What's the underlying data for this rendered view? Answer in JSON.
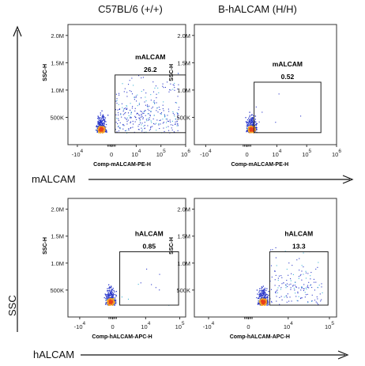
{
  "columns": [
    "C57BL/6 (+/+)",
    "B-hALCAM (H/H)"
  ],
  "row_labels": [
    "mALCAM",
    "hALCAM"
  ],
  "side_label": "SSC",
  "chart_data": [
    {
      "type": "scatter",
      "row": 0,
      "col": 0,
      "xlabel": "Comp-mALCAM-PE-H",
      "ylabel": "SSC-H",
      "yticks": [
        "500K",
        "1.0M",
        "1.5M",
        "2.0M"
      ],
      "y_tick_values": [
        500000,
        1000000,
        1500000,
        2000000
      ],
      "ylim": [
        0,
        2200000
      ],
      "xticks": [
        "-10",
        "0",
        "10",
        "10",
        "10"
      ],
      "xtick_sup": [
        "4",
        "",
        "4",
        "5",
        "6"
      ],
      "gate_label": "mALCAM",
      "gate_percent": "26.2"
    },
    {
      "type": "scatter",
      "row": 0,
      "col": 1,
      "xlabel": "Comp-mALCAM-PE-H",
      "ylabel": "SSC-H",
      "yticks": [
        "500K",
        "1.0M",
        "1.5M",
        "2.0M"
      ],
      "y_tick_values": [
        500000,
        1000000,
        1500000,
        2000000
      ],
      "ylim": [
        0,
        2200000
      ],
      "xticks": [
        "-10",
        "0",
        "10",
        "10",
        "10"
      ],
      "xtick_sup": [
        "4",
        "",
        "4",
        "5",
        "6"
      ],
      "gate_label": "mALCAM",
      "gate_percent": "0.52"
    },
    {
      "type": "scatter",
      "row": 1,
      "col": 0,
      "xlabel": "Comp-hALCAM-APC-H",
      "ylabel": "SSC-H",
      "yticks": [
        "500K",
        "1.0M",
        "1.5M",
        "2.0M"
      ],
      "y_tick_values": [
        500000,
        1000000,
        1500000,
        2000000
      ],
      "ylim": [
        0,
        2200000
      ],
      "xticks": [
        "-10",
        "0",
        "10",
        "10"
      ],
      "xtick_sup": [
        "4",
        "",
        "4",
        "5"
      ],
      "gate_label": "hALCAM",
      "gate_percent": "0.85"
    },
    {
      "type": "scatter",
      "row": 1,
      "col": 1,
      "xlabel": "Comp-hALCAM-APC-H",
      "ylabel": "SSC-H",
      "yticks": [
        "500K",
        "1.0M",
        "1.5M",
        "2.0M"
      ],
      "y_tick_values": [
        500000,
        1000000,
        1500000,
        2000000
      ],
      "ylim": [
        0,
        2200000
      ],
      "xticks": [
        "-10",
        "0",
        "10",
        "10"
      ],
      "xtick_sup": [
        "4",
        "",
        "4",
        "5"
      ],
      "gate_label": "hALCAM",
      "gate_percent": "13.3"
    }
  ]
}
